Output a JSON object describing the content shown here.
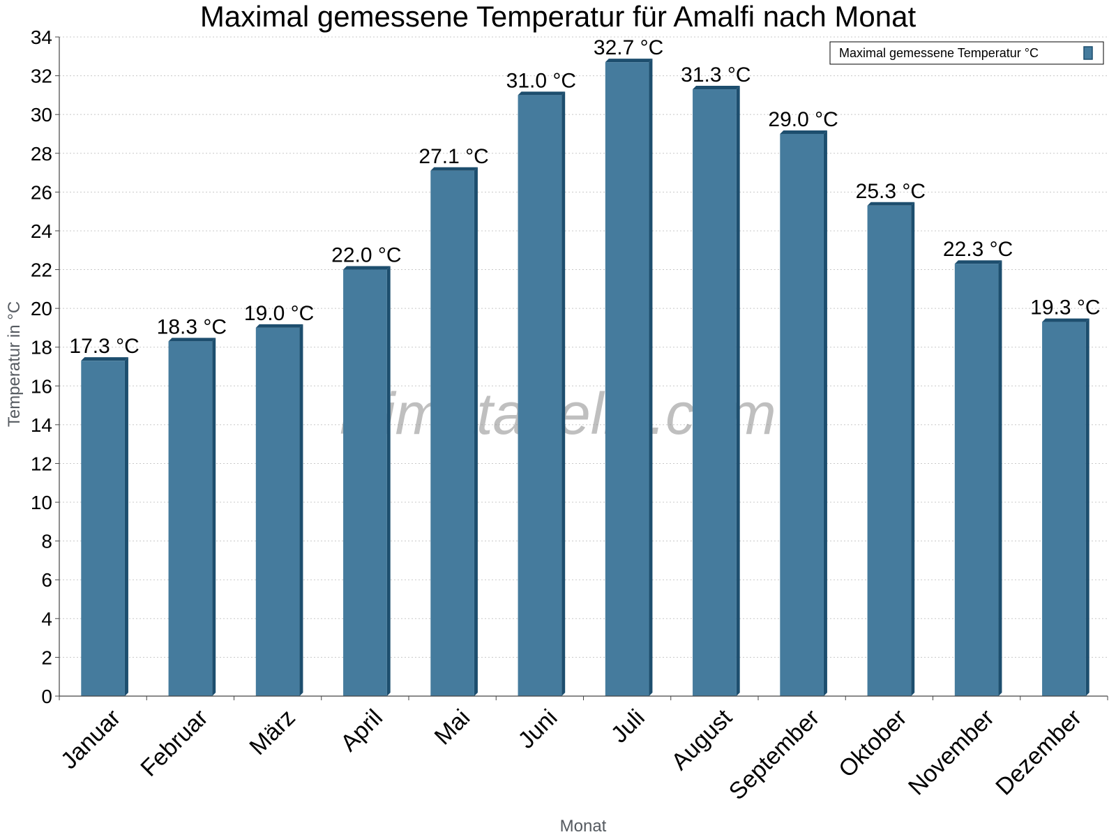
{
  "chart_data": {
    "type": "bar",
    "title": "Maximal gemessene Temperatur für Amalfi nach Monat",
    "xlabel": "Monat",
    "ylabel": "Temperatur in °C",
    "ylim": [
      0,
      34
    ],
    "ytick_step": 2,
    "grid": true,
    "legend_position": "top-right",
    "categories": [
      "Januar",
      "Februar",
      "März",
      "April",
      "Mai",
      "Juni",
      "Juli",
      "August",
      "September",
      "Oktober",
      "November",
      "Dezember"
    ],
    "series": [
      {
        "name": "Maximal gemessene Temperatur °C",
        "values": [
          17.3,
          18.3,
          19.0,
          22.0,
          27.1,
          31.0,
          32.7,
          31.3,
          29.0,
          25.3,
          22.3,
          19.3
        ],
        "labels": [
          "17.3 °C",
          "18.3 °C",
          "19.0 °C",
          "22.0 °C",
          "27.1 °C",
          "31.0 °C",
          "32.7 °C",
          "31.3 °C",
          "29.0 °C",
          "25.3 °C",
          "22.3 °C",
          "19.3 °C"
        ],
        "color": "#457b9d",
        "edge_color": "#1d4e6e"
      }
    ]
  },
  "watermark": "klimatabelle.com"
}
